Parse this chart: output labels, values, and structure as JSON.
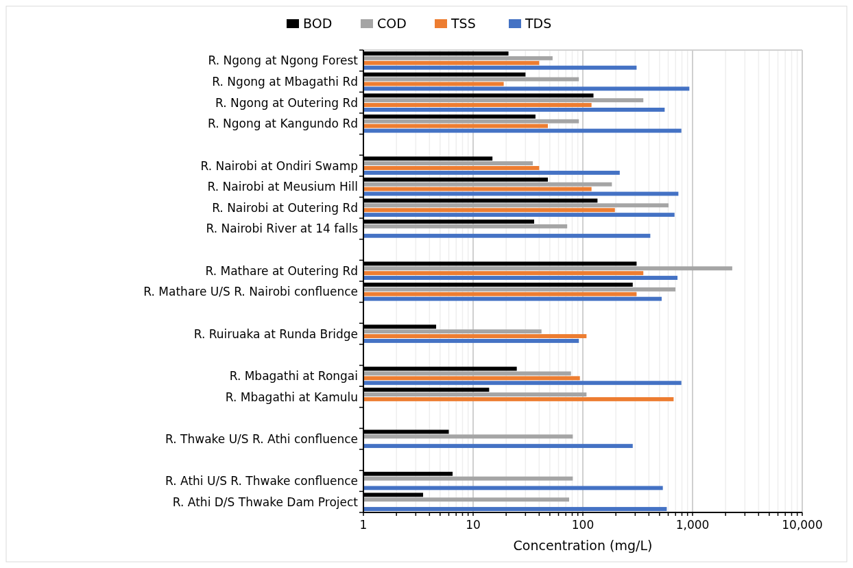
{
  "chart_data": {
    "type": "bar",
    "orientation": "horizontal",
    "log": "x",
    "grid": "x",
    "legend": "top",
    "xlabel": "Concentration (mg/L)",
    "categories": [
      "R. Ngong at Ngong Forest",
      "R. Ngong at Mbagathi Rd",
      "R. Ngong at Outering Rd",
      "R. Ngong at Kangundo Rd",
      null,
      "R. Nairobi at Ondiri Swamp",
      "R. Nairobi at Meusium Hill",
      "R. Nairobi at Outering Rd",
      "R. Nairobi River at 14 falls",
      null,
      "R. Mathare at Outering Rd",
      "R. Mathare U/S R. Nairobi confluence",
      null,
      "R. Ruiruaka at Runda Bridge",
      null,
      "R. Mbagathi at Rongai",
      "R. Mbagathi at Kamulu",
      null,
      "R. Thwake U/S R. Athi confluence",
      null,
      "R. Athi U/S R. Thwake confluence",
      "R. Athi D/S Thwake Dam Project"
    ],
    "xlim": [
      1,
      10000
    ],
    "xticks": [
      1,
      {
        "value": 2,
        "label": null
      },
      {
        "value": 3,
        "label": null
      },
      {
        "value": 4,
        "label": null
      },
      {
        "value": 5,
        "label": null
      },
      {
        "value": 6,
        "label": null
      },
      {
        "value": 7,
        "label": null
      },
      {
        "value": 8,
        "label": null
      },
      {
        "value": 9,
        "label": null
      },
      10,
      {
        "value": 20,
        "label": null
      },
      {
        "value": 30,
        "label": null
      },
      {
        "value": 40,
        "label": null
      },
      {
        "value": 50,
        "label": null
      },
      {
        "value": 60,
        "label": null
      },
      {
        "value": 70,
        "label": null
      },
      {
        "value": 80,
        "label": null
      },
      {
        "value": 90,
        "label": null
      },
      100,
      {
        "value": 200,
        "label": null
      },
      {
        "value": 300,
        "label": null
      },
      {
        "value": 400,
        "label": null
      },
      {
        "value": 500,
        "label": null
      },
      {
        "value": 600,
        "label": null
      },
      {
        "value": 700,
        "label": null
      },
      {
        "value": 800,
        "label": null
      },
      {
        "value": 900,
        "label": null
      },
      {
        "value": 1000,
        "label": "1,000"
      },
      {
        "value": 2000,
        "label": null
      },
      {
        "value": 3000,
        "label": null
      },
      {
        "value": 4000,
        "label": null
      },
      {
        "value": 5000,
        "label": null
      },
      {
        "value": 6000,
        "label": null
      },
      {
        "value": 7000,
        "label": null
      },
      {
        "value": 8000,
        "label": null
      },
      {
        "value": 9000,
        "label": null
      },
      {
        "value": 10000,
        "label": "10,000"
      }
    ],
    "series": [
      {
        "name": "BOD",
        "color": "#000000",
        "values": [
          21,
          30,
          125,
          37,
          null,
          15,
          48,
          136,
          36,
          null,
          309,
          285,
          null,
          4.6,
          null,
          25,
          14,
          null,
          6,
          null,
          6.5,
          3.5
        ]
      },
      {
        "name": "COD",
        "color": "#a5a5a5",
        "values": [
          53,
          92,
          356,
          92,
          null,
          35,
          184,
          604,
          72,
          null,
          2300,
          698,
          null,
          42,
          null,
          78,
          108,
          null,
          81,
          null,
          81,
          75
        ]
      },
      {
        "name": "TSS",
        "color": "#ed7d31",
        "values": [
          40,
          19,
          120,
          48,
          null,
          40,
          120,
          196,
          null,
          null,
          356,
          309,
          null,
          108,
          null,
          94,
          672,
          null,
          null,
          null,
          null,
          null
        ]
      },
      {
        "name": "TDS",
        "color": "#4472c4",
        "values": [
          309,
          935,
          557,
          791,
          null,
          217,
          743,
          685,
          412,
          null,
          729,
          523,
          null,
          92,
          null,
          791,
          null,
          null,
          285,
          null,
          536,
          582
        ]
      }
    ]
  }
}
